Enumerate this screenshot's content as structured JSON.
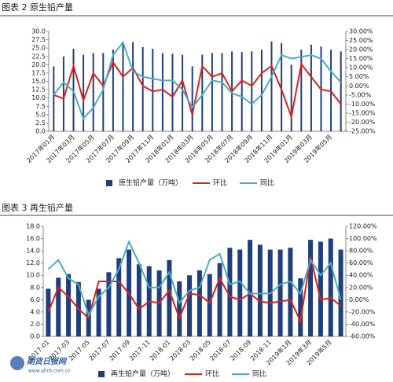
{
  "chart_data": [
    {
      "type": "bar",
      "title": "图表 2 原生铅产量",
      "categories": [
        "2017年01月",
        null,
        "2017年03月",
        null,
        "2017年05月",
        null,
        "2017年07月",
        null,
        "2017年09月",
        null,
        "2017年11月",
        null,
        "2018年01月",
        null,
        "2018年03月",
        null,
        "2018年05月",
        null,
        "2018年07月",
        null,
        "2018年09月",
        null,
        "2018年11月",
        null,
        "2019年01月",
        null,
        "2019年03月",
        null,
        "2019年05月",
        null
      ],
      "series": [
        {
          "name": "原生铅产量（万吨）",
          "type": "bar",
          "color": "#1f3f7a",
          "values": [
            19.5,
            22.5,
            24.8,
            23.0,
            23.5,
            23.5,
            24.5,
            26.5,
            26.8,
            25.3,
            24.8,
            23.5,
            23.3,
            23.0,
            19.5,
            23.0,
            23.5,
            23.5,
            24.0,
            23.8,
            24.0,
            24.5,
            27.0,
            26.5,
            20.0,
            24.5,
            26.0,
            25.5,
            24.5,
            24.0
          ]
        },
        {
          "name": "环比",
          "type": "line",
          "axis": "y2",
          "color": "#e0201b",
          "values": [
            -5,
            -7,
            11,
            -8,
            7,
            0,
            13,
            5,
            10,
            0,
            -3,
            -2,
            -6,
            3,
            -16,
            11,
            5,
            7,
            -3,
            3,
            0,
            7,
            11,
            -2,
            -17,
            12,
            5,
            -2,
            -3,
            -10
          ]
        },
        {
          "name": "同比",
          "type": "line",
          "axis": "y2",
          "color": "#4bacc6",
          "values": [
            -5,
            2,
            -3,
            -18,
            -12,
            -2,
            17,
            24,
            8,
            5,
            4,
            3,
            3,
            -2,
            -12,
            -5,
            3,
            2,
            -4,
            -6,
            -10,
            -5,
            5,
            17,
            15,
            16,
            17,
            15,
            8,
            2
          ]
        }
      ],
      "ylim": [
        0,
        30
      ],
      "yticks": [
        {
          "value": 0,
          "label": "0.0"
        },
        {
          "value": 2.5,
          "label": "2.5"
        },
        {
          "value": 5,
          "label": "5.0"
        },
        {
          "value": 7.5,
          "label": "7.5"
        },
        {
          "value": 10,
          "label": "10.0"
        },
        {
          "value": 12.5,
          "label": "12.5"
        },
        {
          "value": 15,
          "label": "15.0"
        },
        {
          "value": 17.5,
          "label": "17.5"
        },
        {
          "value": 20,
          "label": "20.0"
        },
        {
          "value": 22.5,
          "label": "22.5"
        },
        {
          "value": 25,
          "label": "25.0"
        },
        {
          "value": 27.5,
          "label": "27.5"
        },
        {
          "value": 30,
          "label": "30.0"
        }
      ],
      "y2lim": [
        -25,
        30
      ],
      "y2ticks": [
        {
          "value": -25,
          "label": "-25.00%"
        },
        {
          "value": -20,
          "label": "-20.00%"
        },
        {
          "value": -15,
          "label": "-15.00%"
        },
        {
          "value": -10,
          "label": "-10.00%"
        },
        {
          "value": -5,
          "label": "-5.00%"
        },
        {
          "value": 0,
          "label": "0.00%"
        },
        {
          "value": 5,
          "label": "5.00%"
        },
        {
          "value": 10,
          "label": "10.00%"
        },
        {
          "value": 15,
          "label": "15.00%"
        },
        {
          "value": 20,
          "label": "20.00%"
        },
        {
          "value": 25,
          "label": "25.00%"
        },
        {
          "value": 30,
          "label": "30.00%"
        }
      ],
      "grid": false,
      "legend": "bottom"
    },
    {
      "type": "bar",
      "title": "图表 3 再生铅产量",
      "categories": [
        "2017-01",
        null,
        "2017-03",
        null,
        "2017-05",
        null,
        "2017-07",
        null,
        "2017-09",
        null,
        "2017-11",
        null,
        "2018-01",
        null,
        "2018-03",
        null,
        "2018-05",
        null,
        "2018-07",
        null,
        "2018-09",
        null,
        "2018-11",
        null,
        "2019年1月",
        null,
        "2019年3月",
        null,
        "2019年5月",
        null
      ],
      "series": [
        {
          "name": "再生铅产量（万吨）",
          "type": "bar",
          "color": "#1f3f7a",
          "values": [
            7.8,
            9.6,
            10.2,
            8.9,
            6.0,
            7.8,
            10.5,
            12.8,
            14.2,
            11.8,
            11.5,
            10.8,
            12.5,
            9.0,
            10.0,
            10.8,
            10.2,
            12.0,
            14.5,
            14.2,
            15.8,
            15.0,
            14.2,
            14.2,
            14.5,
            9.5,
            15.8,
            15.5,
            16.0,
            14.2
          ]
        },
        {
          "name": "环比",
          "type": "line",
          "axis": "y2",
          "color": "#e0201b",
          "values": [
            -20,
            20,
            5,
            -15,
            -30,
            30,
            30,
            30,
            10,
            -15,
            -3,
            -5,
            15,
            -30,
            10,
            8,
            -5,
            35,
            5,
            0,
            10,
            -3,
            -5,
            -3,
            0,
            -35,
            70,
            0,
            3,
            -10
          ]
        },
        {
          "name": "同比",
          "type": "line",
          "axis": "y2",
          "color": "#4bacc6",
          "values": [
            50,
            65,
            35,
            25,
            -25,
            5,
            20,
            50,
            95,
            60,
            20,
            20,
            45,
            -5,
            15,
            20,
            65,
            75,
            25,
            30,
            10,
            10,
            10,
            25,
            30,
            10,
            65,
            40,
            60,
            0
          ]
        }
      ],
      "ylim": [
        0,
        18
      ],
      "yticks": [
        {
          "value": 0,
          "label": "0.0"
        },
        {
          "value": 2,
          "label": "2.0"
        },
        {
          "value": 4,
          "label": "4.0"
        },
        {
          "value": 6,
          "label": "6.0"
        },
        {
          "value": 8,
          "label": "8.0"
        },
        {
          "value": 10,
          "label": "10.0"
        },
        {
          "value": 12,
          "label": "12.0"
        },
        {
          "value": 14,
          "label": "14.0"
        },
        {
          "value": 16,
          "label": "16.0"
        },
        {
          "value": 18,
          "label": "18.0"
        }
      ],
      "y2lim": [
        -60,
        120
      ],
      "y2ticks": [
        {
          "value": -60,
          "label": "-60.00%"
        },
        {
          "value": -40,
          "label": "-40.00%"
        },
        {
          "value": -20,
          "label": "-20.00%"
        },
        {
          "value": 0,
          "label": "0.00%"
        },
        {
          "value": 20,
          "label": "20.00%"
        },
        {
          "value": 40,
          "label": "40.00%"
        },
        {
          "value": 60,
          "label": "60.00%"
        },
        {
          "value": 80,
          "label": "80.00%"
        },
        {
          "value": 100,
          "label": "100.00%"
        },
        {
          "value": 120,
          "label": "120.00%"
        }
      ],
      "grid": false,
      "legend": "bottom"
    }
  ],
  "watermark": {
    "name": "期货日报网",
    "url": "www.qhrb.com.cn"
  }
}
